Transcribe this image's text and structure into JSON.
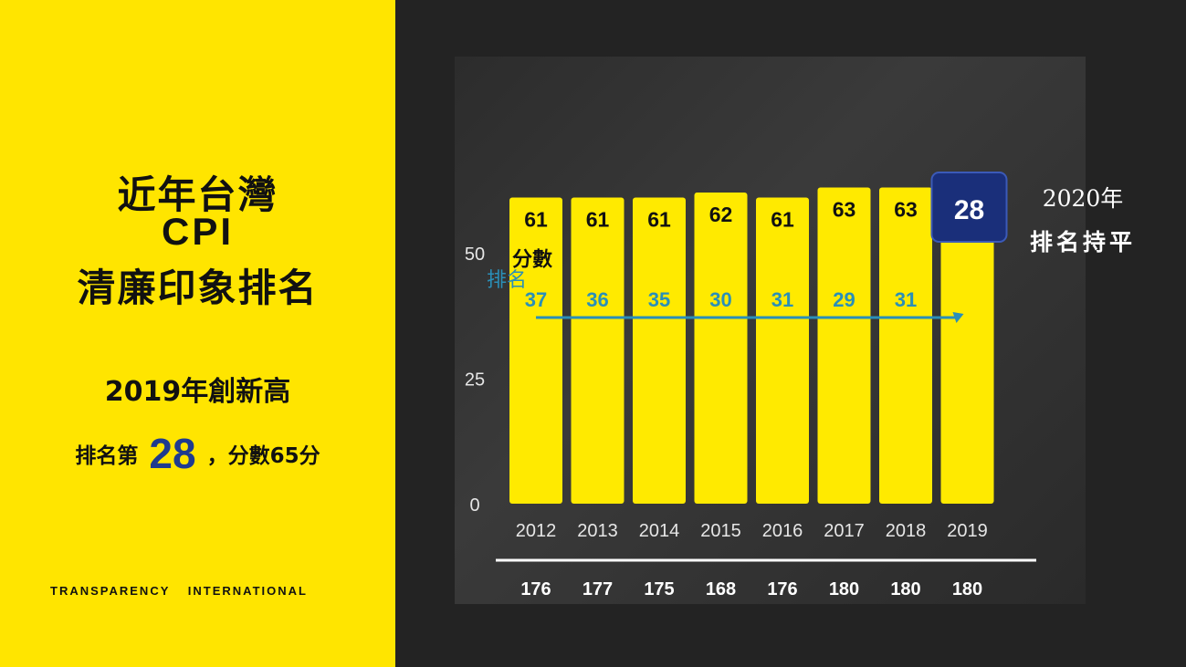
{
  "left_panel": {
    "title_line1": "近年台灣",
    "title_line2": "CPI",
    "title_line3": "清廉印象排名",
    "subtitle_line1": "2019年創新高",
    "subtitle_line2_prefix": "排名第",
    "subtitle_rank": "28",
    "subtitle_line2_suffix": "，分數65分",
    "org": "TRANSPARENCY INTERNATIONAL",
    "background_color": "#FFE500",
    "accent_color": "#1f3b8f"
  },
  "callout": {
    "year": "2020年",
    "text": "排名持平"
  },
  "chart_data": {
    "type": "bar",
    "categories": [
      "2012",
      "2013",
      "2014",
      "2015",
      "2016",
      "2017",
      "2018",
      "2019"
    ],
    "series": [
      {
        "name": "分數",
        "kind": "bar",
        "color": "#FFEA00",
        "values": [
          61,
          61,
          61,
          62,
          61,
          63,
          63,
          65
        ]
      },
      {
        "name": "排名",
        "kind": "line",
        "color": "#2a8fb8",
        "values": [
          37,
          36,
          35,
          30,
          31,
          29,
          31,
          28
        ]
      }
    ],
    "totals": [
      176,
      177,
      175,
      168,
      176,
      180,
      180,
      180
    ],
    "yticks": [
      0,
      25,
      50
    ],
    "ylim": [
      0,
      65
    ],
    "highlight": {
      "category": "2019",
      "series": "排名",
      "value": "28"
    },
    "grid": false
  }
}
